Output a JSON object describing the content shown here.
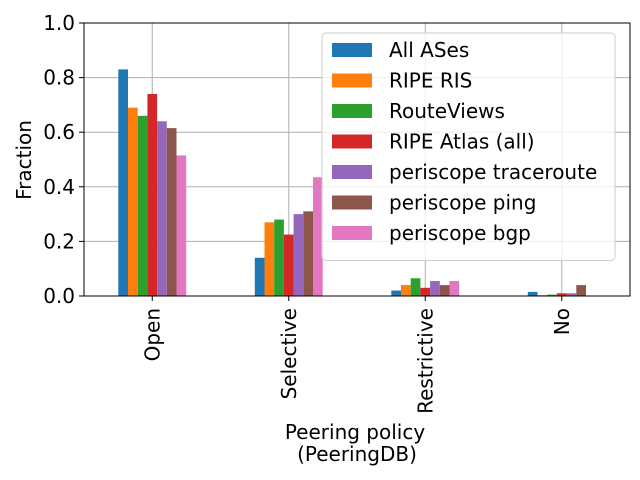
{
  "chart_data": {
    "type": "bar",
    "xlabel_lines": [
      "Peering policy",
      "(PeeringDB)"
    ],
    "ylabel": "Fraction",
    "categories": [
      "Open",
      "Selective",
      "Restrictive",
      "No"
    ],
    "ylim": [
      0,
      1.0
    ],
    "yticks": [
      "0.0",
      "0.2",
      "0.4",
      "0.6",
      "0.8",
      "1.0"
    ],
    "grid": true,
    "legend_position": "upper-right",
    "series": [
      {
        "name": "All ASes",
        "color": "#1f77b4",
        "values": [
          0.83,
          0.14,
          0.02,
          0.015
        ]
      },
      {
        "name": "RIPE RIS",
        "color": "#ff7f0e",
        "values": [
          0.69,
          0.27,
          0.04,
          0.003
        ]
      },
      {
        "name": "RouteViews",
        "color": "#2ca02c",
        "values": [
          0.66,
          0.28,
          0.065,
          0.005
        ]
      },
      {
        "name": "RIPE Atlas (all)",
        "color": "#d62728",
        "values": [
          0.74,
          0.225,
          0.03,
          0.01
        ]
      },
      {
        "name": "periscope traceroute",
        "color": "#9467bd",
        "values": [
          0.64,
          0.3,
          0.055,
          0.01
        ]
      },
      {
        "name": "periscope ping",
        "color": "#8c564b",
        "values": [
          0.615,
          0.31,
          0.04,
          0.04
        ]
      },
      {
        "name": "periscope bgp",
        "color": "#e377c2",
        "values": [
          0.515,
          0.435,
          0.055,
          0.0
        ]
      }
    ]
  }
}
